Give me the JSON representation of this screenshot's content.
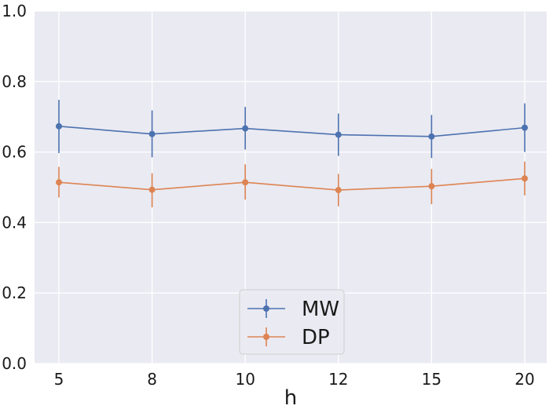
{
  "chart_data": {
    "type": "line",
    "title": "",
    "xlabel": "h",
    "ylabel": "",
    "categories": [
      "5",
      "8",
      "10",
      "12",
      "15",
      "20"
    ],
    "ylim": [
      0.0,
      1.0
    ],
    "yticks": [
      "0.0",
      "0.2",
      "0.4",
      "0.6",
      "0.8",
      "1.0"
    ],
    "grid": true,
    "legend_position": "bottom-center",
    "series": [
      {
        "name": "MW",
        "color": "#4c72b0",
        "values": [
          0.673,
          0.651,
          0.667,
          0.649,
          0.644,
          0.669
        ],
        "err_low": [
          0.597,
          0.585,
          0.607,
          0.589,
          0.583,
          0.6
        ],
        "err_high": [
          0.748,
          0.718,
          0.728,
          0.709,
          0.705,
          0.738
        ]
      },
      {
        "name": "DP",
        "color": "#dd8452",
        "values": [
          0.514,
          0.493,
          0.514,
          0.492,
          0.503,
          0.525
        ],
        "err_low": [
          0.471,
          0.443,
          0.465,
          0.446,
          0.452,
          0.477
        ],
        "err_high": [
          0.558,
          0.54,
          0.565,
          0.538,
          0.552,
          0.573
        ]
      }
    ]
  }
}
